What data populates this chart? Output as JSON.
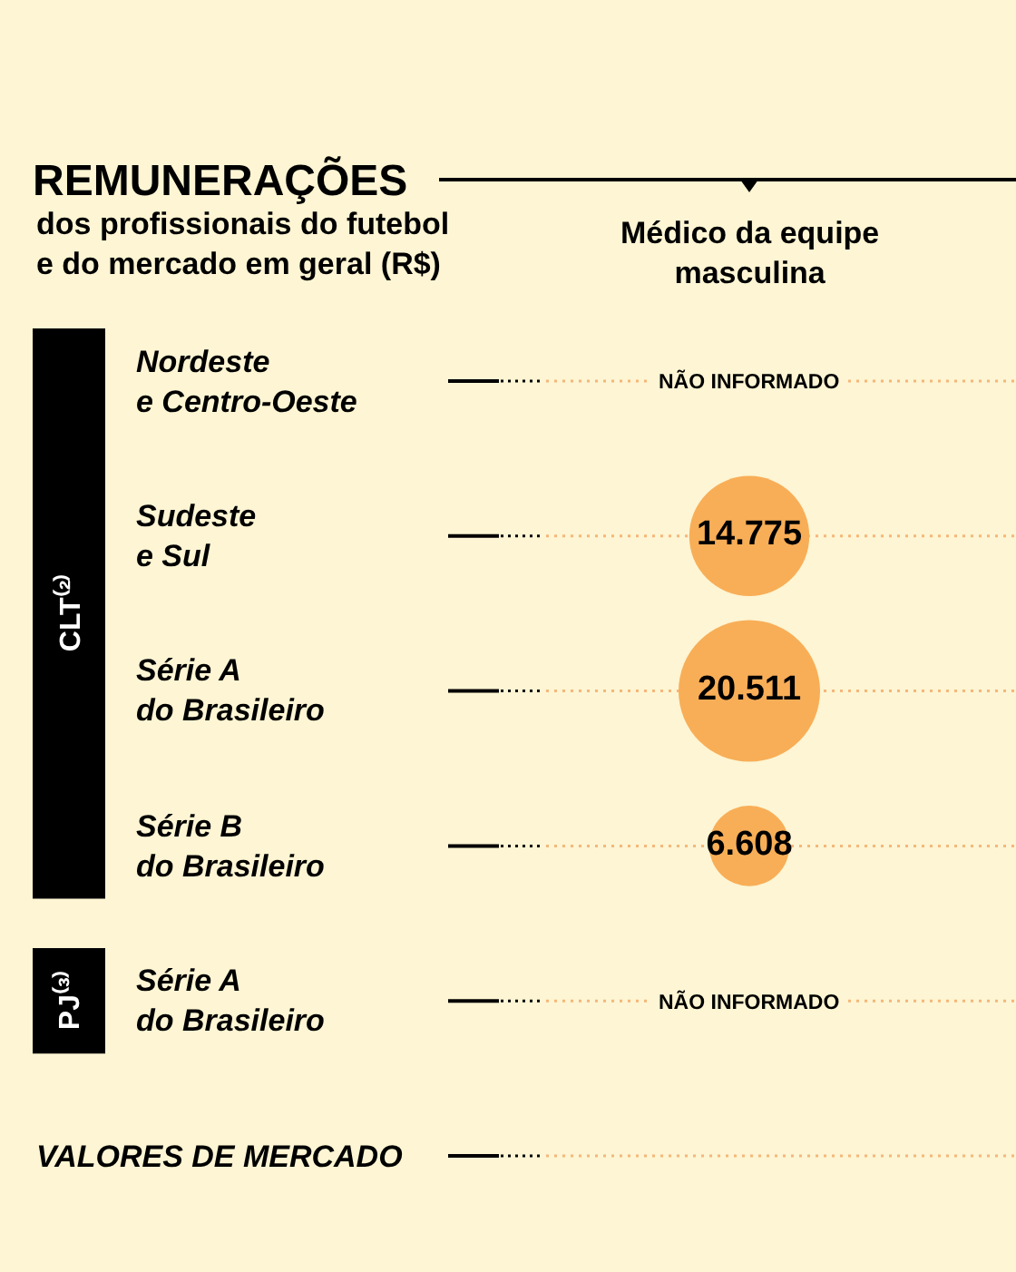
{
  "chart_data": {
    "type": "other",
    "title": "REMUNERAÇÕES",
    "subtitle": "dos profissionais do futebol\ne do mercado em geral (R$)",
    "xlabel": "Médico da equipe\nmasculina",
    "categories": [
      "Nordeste\ne Centro-Oeste",
      "Sudeste\ne Sul",
      "Série A\ndo Brasileiro",
      "Série B\ndo Brasileiro",
      "Série A\ndo Brasileiro",
      "VALORES DE MERCADO"
    ],
    "values": [
      null,
      14775,
      20511,
      6608,
      null,
      null
    ],
    "value_labels": [
      "NÃO INFORMADO",
      "14.775",
      "20.511",
      "6.608",
      "NÃO INFORMADO",
      null
    ],
    "color": "#f8ae57",
    "annotations": [
      "CLT⁽²⁾",
      "PJ⁽³⁾"
    ]
  }
}
